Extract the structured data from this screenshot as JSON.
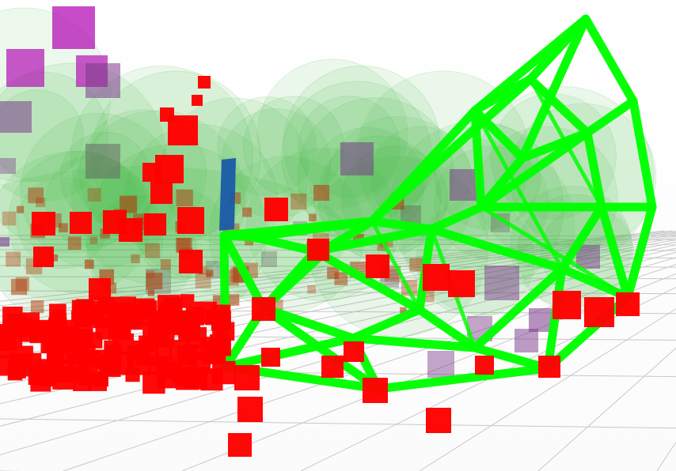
{
  "scene": {
    "background_color": "#ffffff",
    "grid_color": "#c8c8c8",
    "hull_color": "#00ff00",
    "sphere_color": "#2bb32b",
    "marker_colors": {
      "obstacle": "#ff0000",
      "far_obstacle": "#b04010",
      "purple_voxel": "#b000b0",
      "gray_voxel": "#606060",
      "bar": "#1a5aa8"
    },
    "objects": [
      "ground-grid",
      "sphere-cloud",
      "green-convex-hull",
      "red-cube-markers",
      "purple-cube-markers",
      "gray-cube-markers",
      "blue-bar-marker"
    ]
  }
}
